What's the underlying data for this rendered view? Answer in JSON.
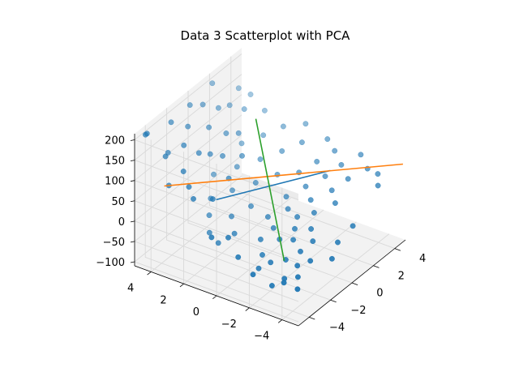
{
  "chart_data": {
    "type": "scatter",
    "projection": "3d",
    "title": "Data 3 Scatterplot with PCA",
    "xlabel": "",
    "ylabel": "",
    "zlabel": "",
    "grid": true,
    "axes": {
      "x": {
        "lim": [
          -5,
          5
        ],
        "ticks": [
          -4,
          -2,
          0,
          2,
          4
        ],
        "tick_labels": [
          "−4",
          "−2",
          "0",
          "2",
          "4"
        ]
      },
      "y": {
        "lim": [
          -5,
          5
        ],
        "ticks": [
          -4,
          -2,
          0,
          2,
          4
        ],
        "tick_labels": [
          "−4",
          "−2",
          "0",
          "2",
          "4"
        ]
      },
      "z": {
        "lim": [
          -110,
          215
        ],
        "ticks": [
          -100,
          -50,
          0,
          50,
          100,
          150,
          200
        ],
        "tick_labels": [
          "−100",
          "−50",
          "0",
          "50",
          "100",
          "150",
          "200"
        ]
      }
    },
    "colors": {
      "points": "#1f77b4",
      "pc_lines": [
        "#1f77b4",
        "#ff7f0e",
        "#2ca02c"
      ],
      "pane": "#f2f2f2",
      "grid": "#d9d9d9"
    },
    "points": [
      {
        "x": -3.6,
        "y": -3.2,
        "z": -60
      },
      {
        "x": -3.1,
        "y": -2.9,
        "z": -65
      },
      {
        "x": -3.4,
        "y": -3.9,
        "z": -70
      },
      {
        "x": -2.9,
        "y": -3.6,
        "z": -55
      },
      {
        "x": -2.5,
        "y": -3.3,
        "z": -40
      },
      {
        "x": -3.8,
        "y": -2.6,
        "z": -72
      },
      {
        "x": -2.2,
        "y": -2.4,
        "z": -45
      },
      {
        "x": -2.7,
        "y": -1.8,
        "z": -50
      },
      {
        "x": -1.9,
        "y": -3.7,
        "z": -35
      },
      {
        "x": -3.2,
        "y": -1.4,
        "z": -60
      },
      {
        "x": -1.6,
        "y": -2.9,
        "z": -30
      },
      {
        "x": -2.4,
        "y": -1.1,
        "z": -48
      },
      {
        "x": -1.2,
        "y": -2.2,
        "z": -20
      },
      {
        "x": -1.8,
        "y": -0.6,
        "z": -30
      },
      {
        "x": -0.9,
        "y": -3.2,
        "z": -15
      },
      {
        "x": -1.4,
        "y": -1.5,
        "z": -25
      },
      {
        "x": -0.6,
        "y": -1.9,
        "z": -10
      },
      {
        "x": -0.9,
        "y": -0.8,
        "z": -18
      },
      {
        "x": -0.3,
        "y": -2.7,
        "z": -5
      },
      {
        "x": -0.5,
        "y": -0.2,
        "z": -8
      },
      {
        "x": 0.1,
        "y": -1.6,
        "z": 0
      },
      {
        "x": 0.3,
        "y": -0.9,
        "z": 5
      },
      {
        "x": 0.6,
        "y": -2.3,
        "z": 10
      },
      {
        "x": 0.9,
        "y": -0.4,
        "z": 15
      },
      {
        "x": 1.2,
        "y": -1.7,
        "z": 20
      },
      {
        "x": 1.5,
        "y": -3.0,
        "z": 25
      },
      {
        "x": 1.8,
        "y": -1.0,
        "z": 30
      },
      {
        "x": 2.1,
        "y": -2.4,
        "z": 35
      },
      {
        "x": 2.4,
        "y": -0.2,
        "z": 40
      },
      {
        "x": 2.7,
        "y": -1.6,
        "z": 45
      },
      {
        "x": 3.0,
        "y": -2.8,
        "z": 50
      },
      {
        "x": 3.3,
        "y": -0.7,
        "z": 55
      },
      {
        "x": 3.6,
        "y": -2.0,
        "z": 60
      },
      {
        "x": 3.9,
        "y": -3.4,
        "z": 65
      },
      {
        "x": 4.2,
        "y": -1.2,
        "z": 70
      },
      {
        "x": 4.5,
        "y": -2.6,
        "z": 75
      },
      {
        "x": -3.0,
        "y": 1.2,
        "z": -40
      },
      {
        "x": -2.6,
        "y": 2.0,
        "z": -35
      },
      {
        "x": -2.1,
        "y": 0.8,
        "z": -30
      },
      {
        "x": -1.7,
        "y": 2.6,
        "z": -20
      },
      {
        "x": -1.3,
        "y": 1.5,
        "z": -15
      },
      {
        "x": -0.8,
        "y": 3.1,
        "z": -5
      },
      {
        "x": -0.4,
        "y": 0.9,
        "z": 0
      },
      {
        "x": 0.0,
        "y": 2.3,
        "z": 10
      },
      {
        "x": 0.4,
        "y": 3.7,
        "z": 20
      },
      {
        "x": 0.8,
        "y": 1.4,
        "z": 25
      },
      {
        "x": 1.2,
        "y": 2.8,
        "z": 35
      },
      {
        "x": 1.6,
        "y": 0.6,
        "z": 40
      },
      {
        "x": 2.0,
        "y": 1.9,
        "z": 50
      },
      {
        "x": 2.4,
        "y": 3.3,
        "z": 60
      },
      {
        "x": 2.8,
        "y": 1.1,
        "z": 65
      },
      {
        "x": 3.2,
        "y": 2.5,
        "z": 75
      },
      {
        "x": 3.6,
        "y": 0.4,
        "z": 80
      },
      {
        "x": 4.0,
        "y": 1.8,
        "z": 90
      },
      {
        "x": 4.4,
        "y": 3.2,
        "z": 100
      },
      {
        "x": 4.7,
        "y": 0.9,
        "z": 95
      },
      {
        "x": -4.6,
        "y": 4.6,
        "z": 210
      },
      {
        "x": -4.3,
        "y": 4.7,
        "z": 205
      },
      {
        "x": -3.8,
        "y": 3.9,
        "z": 150
      },
      {
        "x": -3.1,
        "y": 4.2,
        "z": 140
      },
      {
        "x": -3.5,
        "y": 3.0,
        "z": 120
      },
      {
        "x": -2.7,
        "y": 3.5,
        "z": 160
      },
      {
        "x": -2.2,
        "y": 4.6,
        "z": 190
      },
      {
        "x": -1.9,
        "y": 3.1,
        "z": 130
      },
      {
        "x": -1.4,
        "y": 4.1,
        "z": 170
      },
      {
        "x": -1.0,
        "y": 3.0,
        "z": 110
      },
      {
        "x": -0.6,
        "y": 4.5,
        "z": 200
      },
      {
        "x": -0.2,
        "y": 3.6,
        "z": 150
      },
      {
        "x": 0.3,
        "y": 4.3,
        "z": 185
      },
      {
        "x": 0.8,
        "y": 3.2,
        "z": 120
      },
      {
        "x": 1.3,
        "y": 4.0,
        "z": 160
      },
      {
        "x": 1.8,
        "y": 4.7,
        "z": 200
      },
      {
        "x": -4.1,
        "y": 2.0,
        "z": 80
      },
      {
        "x": -3.6,
        "y": 2.6,
        "z": 90
      },
      {
        "x": -2.9,
        "y": 1.6,
        "z": 60
      },
      {
        "x": -4.4,
        "y": 3.3,
        "z": 100
      },
      {
        "x": -1.1,
        "y": 1.8,
        "z": 70
      },
      {
        "x": -0.3,
        "y": 2.7,
        "z": 95
      },
      {
        "x": 0.6,
        "y": 2.1,
        "z": 85
      },
      {
        "x": 1.5,
        "y": 2.9,
        "z": 110
      },
      {
        "x": 2.5,
        "y": 4.1,
        "z": 140
      },
      {
        "x": 3.1,
        "y": 3.6,
        "z": 125
      },
      {
        "x": 3.8,
        "y": 4.4,
        "z": 150
      },
      {
        "x": 4.3,
        "y": 4.0,
        "z": 130
      },
      {
        "x": -4.7,
        "y": 0.5,
        "z": 20
      },
      {
        "x": -4.2,
        "y": -0.8,
        "z": -20
      },
      {
        "x": -4.5,
        "y": -1.9,
        "z": -40
      },
      {
        "x": -3.9,
        "y": 0.0,
        "z": 10
      },
      {
        "x": 4.6,
        "y": -0.5,
        "z": 80
      },
      {
        "x": 4.1,
        "y": -3.9,
        "z": 55
      },
      {
        "x": 3.5,
        "y": -4.3,
        "z": 45
      },
      {
        "x": -0.1,
        "y": -4.2,
        "z": -20
      },
      {
        "x": -1.1,
        "y": -4.5,
        "z": -35
      },
      {
        "x": 1.0,
        "y": -4.4,
        "z": 0
      }
    ],
    "pca_lines": [
      {
        "from": {
          "x": -3.5,
          "y": 1.0,
          "z": 80
        },
        "to": {
          "x": 3.8,
          "y": -1.2,
          "z": 30
        }
      },
      {
        "from": {
          "x": -1.0,
          "y": 5.8,
          "z": -10
        },
        "to": {
          "x": 4.0,
          "y": -5.5,
          "z": 105
        }
      },
      {
        "from": {
          "x": -2.5,
          "y": -2.5,
          "z": -40
        },
        "to": {
          "x": 2.5,
          "y": 2.5,
          "z": 130
        }
      }
    ]
  }
}
